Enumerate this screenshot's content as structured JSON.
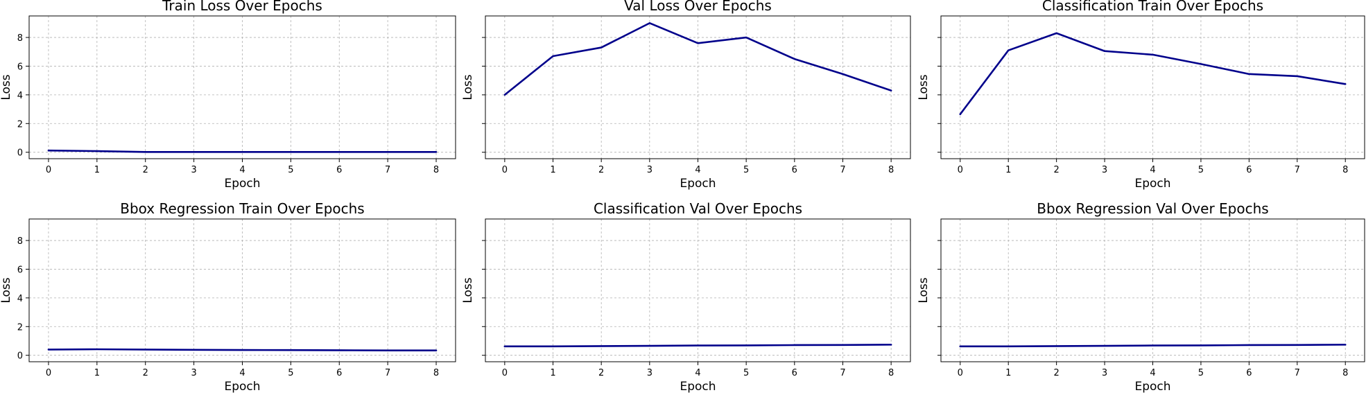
{
  "figure": {
    "line_color": "#00008b",
    "grid_color": "#b0b0b0"
  },
  "chart_data": [
    {
      "type": "line",
      "title": "Train Loss Over Epochs",
      "xlabel": "Epoch",
      "ylabel": "Loss",
      "x": [
        0,
        1,
        2,
        3,
        4,
        5,
        6,
        7,
        8
      ],
      "series": [
        {
          "values": [
            0.12,
            0.08,
            0.02,
            0.02,
            0.02,
            0.02,
            0.02,
            0.02,
            0.02
          ]
        }
      ],
      "xlim": [
        -0.4,
        8.4
      ],
      "ylim": [
        -0.45,
        9.5
      ],
      "xticks": [
        "0",
        "1",
        "2",
        "3",
        "4",
        "5",
        "6",
        "7",
        "8"
      ],
      "yticks": [
        "0",
        "2",
        "4",
        "6",
        "8"
      ],
      "grid": true
    },
    {
      "type": "line",
      "title": "Val Loss Over Epochs",
      "xlabel": "Epoch",
      "ylabel": "Loss",
      "x": [
        0,
        1,
        2,
        3,
        4,
        5,
        6,
        7,
        8
      ],
      "series": [
        {
          "values": [
            4.0,
            6.7,
            7.3,
            9.0,
            7.6,
            8.0,
            6.5,
            5.45,
            4.3
          ]
        }
      ],
      "xlim": [
        -0.4,
        8.4
      ],
      "ylim": [
        -0.45,
        9.5
      ],
      "xticks": [
        "0",
        "1",
        "2",
        "3",
        "4",
        "5",
        "6",
        "7",
        "8"
      ],
      "yticks": [],
      "grid": true
    },
    {
      "type": "line",
      "title": "Classification Train Over Epochs",
      "xlabel": "Epoch",
      "ylabel": "Loss",
      "x": [
        0,
        1,
        2,
        3,
        4,
        5,
        6,
        7,
        8
      ],
      "series": [
        {
          "values": [
            2.65,
            7.1,
            8.3,
            7.05,
            6.8,
            6.15,
            5.45,
            5.3,
            4.75
          ]
        }
      ],
      "xlim": [
        -0.4,
        8.4
      ],
      "ylim": [
        -0.45,
        9.5
      ],
      "xticks": [
        "0",
        "1",
        "2",
        "3",
        "4",
        "5",
        "6",
        "7",
        "8"
      ],
      "yticks": [],
      "grid": true
    },
    {
      "type": "line",
      "title": "Bbox Regression Train Over Epochs",
      "xlabel": "Epoch",
      "ylabel": "Loss",
      "x": [
        0,
        1,
        2,
        3,
        4,
        5,
        6,
        7,
        8
      ],
      "series": [
        {
          "values": [
            0.4,
            0.42,
            0.4,
            0.38,
            0.37,
            0.36,
            0.35,
            0.34,
            0.34
          ]
        }
      ],
      "xlim": [
        -0.4,
        8.4
      ],
      "ylim": [
        -0.45,
        9.5
      ],
      "xticks": [
        "0",
        "1",
        "2",
        "3",
        "4",
        "5",
        "6",
        "7",
        "8"
      ],
      "yticks": [
        "0",
        "2",
        "4",
        "6",
        "8"
      ],
      "grid": true
    },
    {
      "type": "line",
      "title": "Classification Val Over Epochs",
      "xlabel": "Epoch",
      "ylabel": "Loss",
      "x": [
        0,
        1,
        2,
        3,
        4,
        5,
        6,
        7,
        8
      ],
      "series": [
        {
          "values": [
            0.62,
            0.62,
            0.64,
            0.66,
            0.68,
            0.69,
            0.71,
            0.72,
            0.74
          ]
        }
      ],
      "xlim": [
        -0.4,
        8.4
      ],
      "ylim": [
        -0.45,
        9.5
      ],
      "xticks": [
        "0",
        "1",
        "2",
        "3",
        "4",
        "5",
        "6",
        "7",
        "8"
      ],
      "yticks": [],
      "grid": true
    },
    {
      "type": "line",
      "title": "Bbox Regression Val Over Epochs",
      "xlabel": "Epoch",
      "ylabel": "Loss",
      "x": [
        0,
        1,
        2,
        3,
        4,
        5,
        6,
        7,
        8
      ],
      "series": [
        {
          "values": [
            0.62,
            0.62,
            0.64,
            0.66,
            0.68,
            0.69,
            0.71,
            0.72,
            0.74
          ]
        }
      ],
      "xlim": [
        -0.4,
        8.4
      ],
      "ylim": [
        -0.45,
        9.5
      ],
      "xticks": [
        "0",
        "1",
        "2",
        "3",
        "4",
        "5",
        "6",
        "7",
        "8"
      ],
      "yticks": [],
      "grid": true
    }
  ]
}
